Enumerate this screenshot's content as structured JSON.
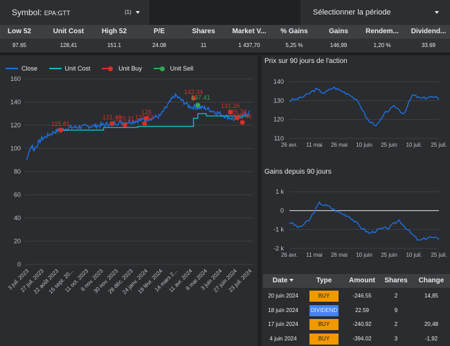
{
  "symbol": {
    "label": "Symbol:",
    "value": "EPA:GTT",
    "count": "(1)"
  },
  "period": {
    "label": "Sélectionner la période"
  },
  "kpi": {
    "headers": [
      "Low 52",
      "Unit Cost",
      "High 52",
      "P/E",
      "Shares",
      "Market V...",
      "% Gains",
      "Gains",
      "Rendem...",
      "Dividend..."
    ],
    "values": [
      "97.65",
      "128,41",
      "151.1",
      "24.08",
      "11",
      "1 437,70",
      "5,25 %",
      "146,99",
      "1,20 %",
      "33.69"
    ]
  },
  "main_chart": {
    "legend": {
      "close": "Close",
      "unit_cost": "Unit Cost",
      "unit_buy": "Unit Buy",
      "unit_sell": "Unit Sell"
    },
    "colors": {
      "close": "#1a73e8",
      "unit_cost": "#12b5cb",
      "buy": "#d93025",
      "sell": "#34a853"
    },
    "y_ticks": [
      "160",
      "140",
      "120",
      "100",
      "80",
      "60",
      "40",
      "20",
      "0"
    ],
    "x_ticks": [
      "3 juil. 2023",
      "27 juil. 2023",
      "22 août 2023",
      "15 sept. 20...",
      "11 oct. 2023",
      "6 nov. 2023",
      "30 nov. 2023",
      "28 déc. 2023",
      "24 janv. 2024",
      "19 févr. 2024",
      "14 mars 2...",
      "11 avr. 2024",
      "8 mai 2024",
      "3 juin 2024",
      "27 juin 2024",
      "23 juil. 2024"
    ],
    "buy_labels": [
      "115.81",
      "121.46",
      "120.31",
      "121.52",
      "126",
      "143.34",
      "131.26",
      "126.34",
      "122.46"
    ],
    "sell_labels": [
      "137.41"
    ]
  },
  "chart_data": [
    {
      "type": "line",
      "title": "",
      "ylim": [
        0,
        160
      ],
      "series": [
        {
          "name": "Close",
          "x": [
            "3 juil. 2023",
            "27 juil. 2023",
            "22 août 2023",
            "15 sept. 2023",
            "11 oct. 2023",
            "6 nov. 2023",
            "30 nov. 2023",
            "28 déc. 2023",
            "24 janv. 2024",
            "19 févr. 2024",
            "14 mars 2024",
            "11 avr. 2024",
            "8 mai 2024",
            "3 juin 2024",
            "27 juin 2024",
            "23 juil. 2024"
          ],
          "y": [
            90,
            108,
            115,
            118,
            119,
            120,
            122,
            123,
            125,
            128,
            146,
            136,
            135,
            130,
            125,
            131
          ]
        },
        {
          "name": "Unit Cost",
          "x": [
            "3 juil. 2023",
            "22 août 2023",
            "11 oct. 2023",
            "30 nov. 2023",
            "24 janv. 2024",
            "19 févr. 2024",
            "11 avr. 2024",
            "3 juin 2024",
            "23 juil. 2024"
          ],
          "y": [
            null,
            115.81,
            118,
            119,
            119,
            126,
            128,
            128,
            128
          ]
        }
      ],
      "buys": [
        115.81,
        121.46,
        120.31,
        121.52,
        126,
        143.34,
        131.26,
        126.34,
        122.46
      ],
      "sells": [
        137.41
      ]
    },
    {
      "type": "line",
      "title": "Prix sur 90 jours de l'action",
      "x_ticks": [
        "26 avr.",
        "11 mai",
        "26 mai",
        "10 juin",
        "25 juin",
        "10 juil.",
        "25 juil."
      ],
      "y_ticks": [
        "140",
        "130",
        "120",
        "110"
      ],
      "ylim": [
        110,
        140
      ],
      "values": [
        130,
        131,
        133,
        136,
        134,
        137,
        135,
        133,
        128,
        119,
        117,
        124,
        127,
        123,
        133,
        131,
        132,
        131
      ]
    },
    {
      "type": "line",
      "title": "Gains depuis 90 jours",
      "x_ticks": [
        "26 avr.",
        "11 mai",
        "26 mai",
        "10 juin",
        "25 juin",
        "10 juil.",
        "25 juil."
      ],
      "y_ticks": [
        "1 k",
        "0",
        "-1 k",
        "-2 k"
      ],
      "ylim": [
        -2000,
        1000
      ],
      "values": [
        -600,
        -900,
        -500,
        400,
        200,
        -100,
        -300,
        -800,
        -1200,
        -1000,
        -900,
        -500,
        -1100,
        -1600,
        -1400,
        -1500
      ]
    }
  ],
  "side": {
    "price_title": "Prix sur 90 jours de l'action",
    "gains_title": "Gains depuis 90 jours",
    "price_y": [
      "140",
      "130",
      "120",
      "110"
    ],
    "gains_y": [
      "1 k",
      "0",
      "-1 k",
      "-2 k"
    ],
    "x_ticks": [
      "26 avr.",
      "11 mai",
      "26 mai",
      "10 juin",
      "25 juin",
      "10 juil.",
      "25 juil."
    ]
  },
  "trades": {
    "headers": [
      "Date",
      "Type",
      "Amount",
      "Shares",
      "Change"
    ],
    "rows": [
      {
        "date": "20 juin 2024",
        "type": "BUY",
        "amount": "-246.55",
        "shares": "2",
        "change": "14,85"
      },
      {
        "date": "18 juin 2024",
        "type": "DIVIDEND",
        "amount": "22.59",
        "shares": "9",
        "change": ""
      },
      {
        "date": "17 juin 2024",
        "type": "BUY",
        "amount": "-240.92",
        "shares": "2",
        "change": "20,48"
      },
      {
        "date": "4 juin 2024",
        "type": "BUY",
        "amount": "-394.02",
        "shares": "3",
        "change": "-1,92"
      }
    ],
    "badge_colors": {
      "BUY": "#f29900",
      "DIVIDEND": "#4285f4"
    }
  }
}
